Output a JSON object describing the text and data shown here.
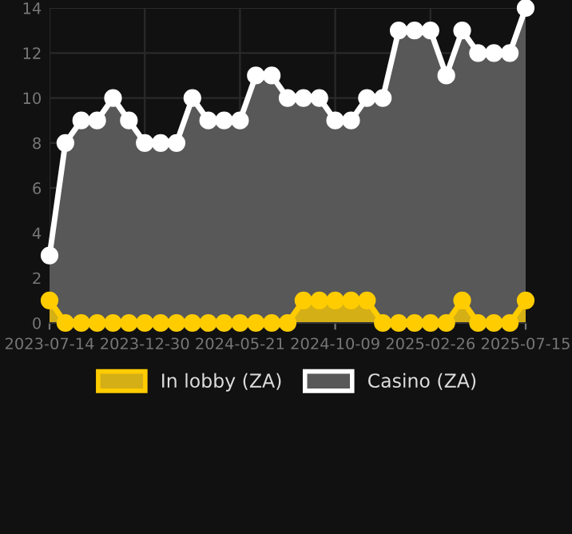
{
  "chart_data": {
    "type": "area",
    "categories": [
      "2023-07-14",
      null,
      null,
      null,
      null,
      null,
      "2023-12-30",
      null,
      null,
      null,
      null,
      null,
      "2024-05-21",
      null,
      null,
      null,
      null,
      null,
      "2024-10-09",
      null,
      null,
      null,
      null,
      null,
      "2025-02-26",
      null,
      null,
      null,
      null,
      null,
      "2025-07-15"
    ],
    "series": [
      {
        "name": "In lobby (ZA)",
        "color": "#ffcc00",
        "values": [
          1,
          0,
          0,
          0,
          0,
          0,
          0,
          0,
          0,
          0,
          0,
          0,
          0,
          0,
          0,
          0,
          1,
          1,
          1,
          1,
          1,
          0,
          0,
          0,
          0,
          0,
          1,
          0,
          0,
          0,
          1
        ]
      },
      {
        "name": "Casino (ZA)",
        "color": "#ffffff",
        "values": [
          3,
          8,
          9,
          9,
          10,
          9,
          8,
          8,
          8,
          10,
          9,
          9,
          9,
          11,
          11,
          10,
          10,
          10,
          9,
          9,
          10,
          10,
          13,
          13,
          13,
          11,
          13,
          12,
          12,
          12,
          14
        ]
      }
    ],
    "ylim": [
      0,
      14
    ],
    "yticks": [
      0,
      2,
      4,
      6,
      8,
      10,
      12,
      14
    ],
    "grid": true,
    "legend": "bottom",
    "marker": "circle",
    "line_style": "solid"
  }
}
